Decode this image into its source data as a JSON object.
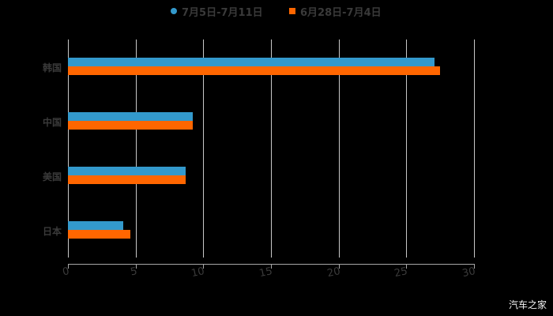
{
  "chart_data": {
    "type": "bar",
    "orientation": "horizontal",
    "title": "",
    "categories": [
      "韩国",
      "中国",
      "美国",
      "日本"
    ],
    "series": [
      {
        "name": "7月5日-7月11日",
        "color": "#3399cc",
        "values": [
          27.1,
          9.2,
          8.7,
          4.1
        ]
      },
      {
        "name": "6月28日-7月4日",
        "color": "#ff6600",
        "values": [
          27.5,
          9.2,
          8.7,
          4.6
        ]
      }
    ],
    "xlabel": "",
    "ylabel": "",
    "xlim": [
      0,
      30
    ],
    "xticks": [
      "0",
      "5",
      "10",
      "15",
      "20",
      "25",
      "30"
    ],
    "grid": true,
    "legend_position": "top"
  },
  "legend": {
    "items": [
      {
        "label": "7月5日-7月11日",
        "color": "#3399cc",
        "shape": "circle"
      },
      {
        "label": "6月28日-7月4日",
        "color": "#ff6600",
        "shape": "square"
      }
    ]
  },
  "watermark": "汽车之家",
  "colors": {
    "background": "#000000",
    "grid": "#c8c8c8",
    "text": "#3a3a3a"
  }
}
